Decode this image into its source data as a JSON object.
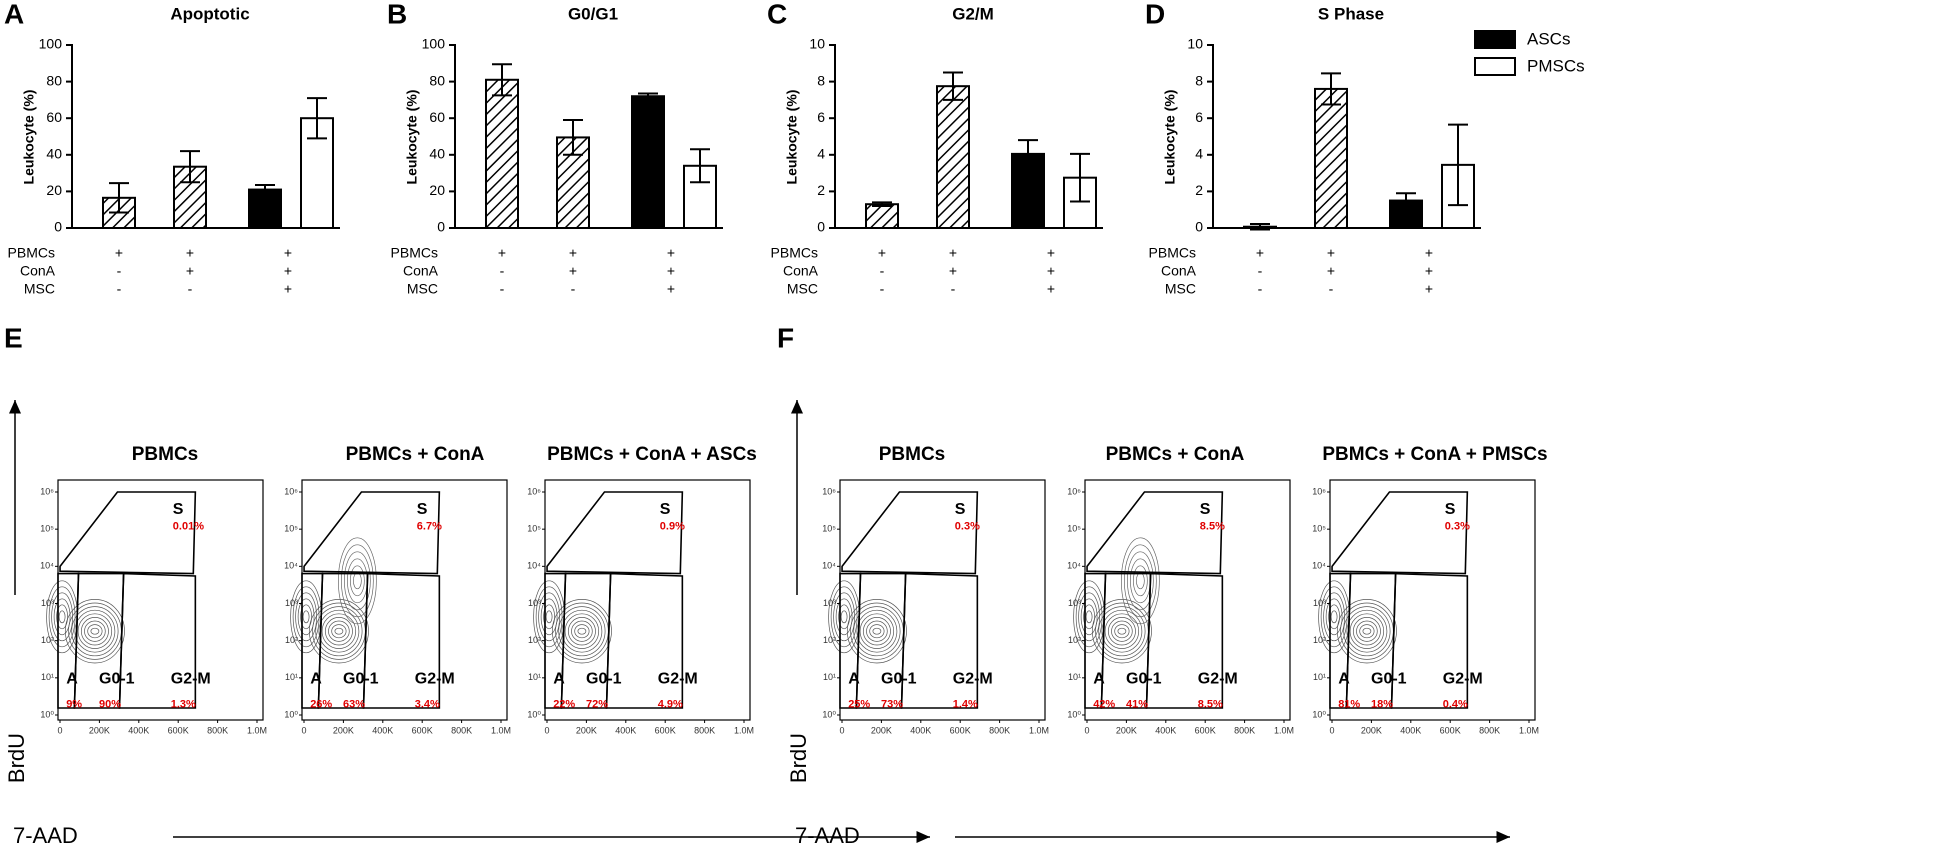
{
  "chart_data": [
    {
      "type": "bar",
      "panel_label": "A",
      "title": "Apoptotic",
      "y_label": "Leukocyte (%)",
      "values": [
        16.5,
        33.5,
        21,
        60
      ],
      "errors": [
        8,
        8.5,
        2.5,
        11
      ],
      "fills": [
        "hatch",
        "hatch",
        "#000000",
        "#ffffff"
      ],
      "ylim": [
        0,
        100
      ],
      "yticks": [
        0,
        20,
        40,
        60,
        80,
        100
      ]
    },
    {
      "type": "bar",
      "panel_label": "B",
      "title": "G0/G1",
      "y_label": "Leukocyte (%)",
      "values": [
        81,
        49.5,
        72,
        34
      ],
      "errors": [
        8.5,
        9.5,
        1.5,
        9
      ],
      "fills": [
        "hatch",
        "hatch",
        "#000000",
        "#ffffff"
      ],
      "ylim": [
        0,
        100
      ],
      "yticks": [
        0,
        20,
        40,
        60,
        80,
        100
      ]
    },
    {
      "type": "bar",
      "panel_label": "C",
      "title": "G2/M",
      "y_label": "Leukocyte (%)",
      "values": [
        1.3,
        7.75,
        4.05,
        2.75
      ],
      "errors": [
        0.1,
        0.75,
        0.75,
        1.3
      ],
      "fills": [
        "hatch",
        "hatch",
        "#000000",
        "#ffffff"
      ],
      "ylim": [
        0,
        10
      ],
      "yticks": [
        0,
        2,
        4,
        6,
        8,
        10
      ]
    },
    {
      "type": "bar",
      "panel_label": "D",
      "title": "S Phase",
      "y_label": "Leukocyte (%)",
      "values": [
        0.07,
        7.6,
        1.5,
        3.45
      ],
      "errors": [
        0.15,
        0.85,
        0.4,
        2.2
      ],
      "fills": [
        "hatch",
        "hatch",
        "#000000",
        "#ffffff"
      ],
      "ylim": [
        0,
        10
      ],
      "yticks": [
        0,
        2,
        4,
        6,
        8,
        10
      ]
    }
  ],
  "legend": [
    {
      "name": "ASCs",
      "color": "#000000"
    },
    {
      "name": "PMSCs",
      "color": "#ffffff"
    }
  ],
  "conditions": {
    "labels": [
      "PBMCs",
      "ConA",
      "MSC"
    ],
    "signs": [
      [
        "+",
        "+",
        "+"
      ],
      [
        "-",
        "+",
        "+"
      ],
      [
        "-",
        "-",
        "+"
      ]
    ]
  },
  "flow": {
    "y_label": "BrdU",
    "x_label": "7-AAD",
    "gate_names": [
      "A",
      "G0-1",
      "G2-M",
      "S"
    ],
    "yticks": [
      {
        "value": 1,
        "label": "10⁰"
      },
      {
        "value": 10,
        "label": "10¹"
      },
      {
        "value": 100,
        "label": "10²"
      },
      {
        "value": 1000,
        "label": "10³"
      },
      {
        "value": 10000,
        "label": "10⁴"
      },
      {
        "value": 100000,
        "label": "10⁵"
      },
      {
        "value": 1000000,
        "label": "10⁶"
      }
    ],
    "xticks": [
      0,
      {
        "value": 200000,
        "label": "200K"
      },
      {
        "value": 400000,
        "label": "400K"
      },
      {
        "value": 600000,
        "label": "600K"
      },
      {
        "value": 800000,
        "label": "800K"
      },
      {
        "value": 1000000,
        "label": "1.0M"
      }
    ],
    "groups": [
      {
        "panel_label": "E",
        "plots": [
          {
            "title": "PBMCs",
            "percents": [
              "9%",
              "90%",
              "1.3%",
              "0.01%"
            ]
          },
          {
            "title": "PBMCs + ConA",
            "percents": [
              "26%",
              "63%",
              "3.4%",
              "6.7%"
            ]
          },
          {
            "title": "PBMCs + ConA + ASCs",
            "percents": [
              "22%",
              "72%",
              "4.9%",
              "0.9%"
            ]
          }
        ]
      },
      {
        "panel_label": "F",
        "plots": [
          {
            "title": "PBMCs",
            "percents": [
              "25%",
              "73%",
              "1.4%",
              "0.3%"
            ]
          },
          {
            "title": "PBMCs + ConA",
            "percents": [
              "42%",
              "41%",
              "8.5%",
              "8.5%"
            ]
          },
          {
            "title": "PBMCs + ConA + PMSCs",
            "percents": [
              "81%",
              "18%",
              "0.4%",
              "0.3%"
            ]
          }
        ]
      }
    ]
  }
}
